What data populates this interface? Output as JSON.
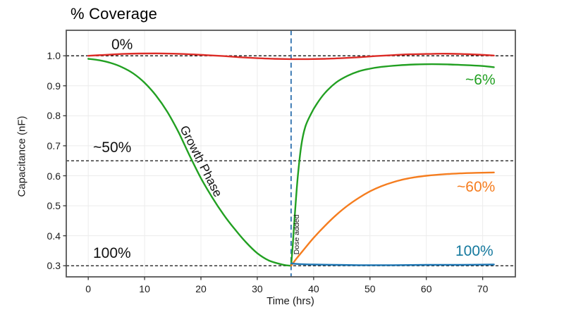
{
  "chart_data": {
    "type": "line",
    "title": "% Coverage",
    "xlabel": "Time (hrs)",
    "ylabel": "Capacitance (nF)",
    "xlim": [
      -3.9,
      75.8
    ],
    "ylim": [
      0.263,
      1.085
    ],
    "grid": true,
    "legend_position": "none (inline colored labels)",
    "xtick_values": [
      0,
      10,
      20,
      30,
      40,
      50,
      60,
      70
    ],
    "xtick_labels": [
      "0",
      "10",
      "20",
      "30",
      "40",
      "50",
      "60",
      "70"
    ],
    "ytick_values": [
      1.0,
      0.9,
      0.8,
      0.7,
      0.6,
      0.5,
      0.4,
      0.3
    ],
    "ytick_labels": [
      "1.0",
      "0.9",
      "0.8",
      "0.7",
      "0.6",
      "0.5",
      "0.4",
      "0.3"
    ],
    "reference_lines": {
      "horizontal_values": [
        1.0,
        0.65,
        0.3
      ],
      "horizontal_color": "#111111",
      "vertical_value": 36,
      "vertical_color": "#3f7cb5"
    },
    "series": [
      {
        "name": "0%",
        "color": "#dd2c27",
        "segments": [
          [
            [
              0,
              1.0
            ],
            [
              3,
              1.003
            ],
            [
              6,
              1.006
            ],
            [
              9,
              1.0075
            ],
            [
              12,
              1.008
            ],
            [
              15,
              1.007
            ],
            [
              18,
              1.005
            ],
            [
              21,
              1.002
            ],
            [
              24,
              0.999
            ],
            [
              27,
              0.995
            ],
            [
              30,
              0.992
            ],
            [
              33,
              0.99
            ],
            [
              36,
              0.989
            ],
            [
              39,
              0.989
            ],
            [
              42,
              0.99
            ],
            [
              45,
              0.992
            ],
            [
              48,
              0.995
            ],
            [
              51,
              0.999
            ],
            [
              54,
              1.002
            ],
            [
              57,
              1.005
            ],
            [
              60,
              1.006
            ],
            [
              63,
              1.007
            ],
            [
              66,
              1.006
            ],
            [
              69,
              1.004
            ],
            [
              72,
              1.001
            ]
          ]
        ]
      },
      {
        "name": "~6%",
        "color": "#22a022",
        "segments": [
          [
            [
              0,
              0.99
            ],
            [
              2,
              0.985
            ],
            [
              4,
              0.976
            ],
            [
              6,
              0.962
            ],
            [
              8,
              0.941
            ],
            [
              10,
              0.91
            ],
            [
              12,
              0.868
            ],
            [
              14,
              0.814
            ],
            [
              16,
              0.746
            ],
            [
              18,
              0.667
            ],
            [
              20,
              0.592
            ],
            [
              22,
              0.528
            ],
            [
              24,
              0.471
            ],
            [
              26,
              0.422
            ],
            [
              28,
              0.378
            ],
            [
              30,
              0.342
            ],
            [
              32,
              0.318
            ],
            [
              34,
              0.306
            ],
            [
              35,
              0.302
            ],
            [
              36,
              0.3
            ]
          ],
          [
            [
              36,
              0.3
            ],
            [
              36.3,
              0.37
            ],
            [
              36.7,
              0.48
            ],
            [
              37.2,
              0.6
            ],
            [
              37.8,
              0.7
            ],
            [
              38.5,
              0.762
            ],
            [
              39.5,
              0.805
            ],
            [
              40.5,
              0.838
            ],
            [
              42,
              0.876
            ],
            [
              44,
              0.911
            ],
            [
              46,
              0.933
            ],
            [
              48,
              0.948
            ],
            [
              50,
              0.957
            ],
            [
              52,
              0.963
            ],
            [
              55,
              0.968
            ],
            [
              58,
              0.971
            ],
            [
              61,
              0.972
            ],
            [
              64,
              0.971
            ],
            [
              67,
              0.969
            ],
            [
              70,
              0.966
            ],
            [
              72,
              0.962
            ]
          ]
        ]
      },
      {
        "name": "~60%",
        "color": "#f57d1f",
        "segments": [
          [
            [
              36,
              0.3
            ],
            [
              37,
              0.325
            ],
            [
              38,
              0.348
            ],
            [
              40,
              0.393
            ],
            [
              42,
              0.433
            ],
            [
              44,
              0.469
            ],
            [
              46,
              0.5
            ],
            [
              48,
              0.526
            ],
            [
              50,
              0.548
            ],
            [
              52,
              0.565
            ],
            [
              54,
              0.578
            ],
            [
              56,
              0.588
            ],
            [
              58,
              0.595
            ],
            [
              60,
              0.6
            ],
            [
              63,
              0.605
            ],
            [
              66,
              0.608
            ],
            [
              69,
              0.61
            ],
            [
              72,
              0.611
            ]
          ]
        ]
      },
      {
        "name": "100%",
        "color": "#1f77b4",
        "segments": [
          [
            [
              36,
              0.308
            ],
            [
              37,
              0.306
            ],
            [
              38,
              0.305
            ],
            [
              40,
              0.304
            ],
            [
              44,
              0.303
            ],
            [
              48,
              0.302
            ],
            [
              54,
              0.302
            ],
            [
              60,
              0.303
            ],
            [
              66,
              0.303
            ],
            [
              72,
              0.304
            ]
          ]
        ]
      }
    ],
    "annotations": {
      "zero": {
        "text": "0%",
        "color": "#111111"
      },
      "fifty": {
        "text": "~50%",
        "color": "#111111"
      },
      "hundred_left": {
        "text": "100%",
        "color": "#111111"
      },
      "six": {
        "text": "~6%",
        "color": "#22a022"
      },
      "sixty": {
        "text": "~60%",
        "color": "#f57d1f"
      },
      "hundred_right": {
        "text": "100%",
        "color": "#15799e"
      },
      "growth_phase": {
        "text": "Growth Phase",
        "color": "#111111"
      },
      "dose_added": {
        "text": "Dose added",
        "color": "#111111"
      }
    }
  }
}
